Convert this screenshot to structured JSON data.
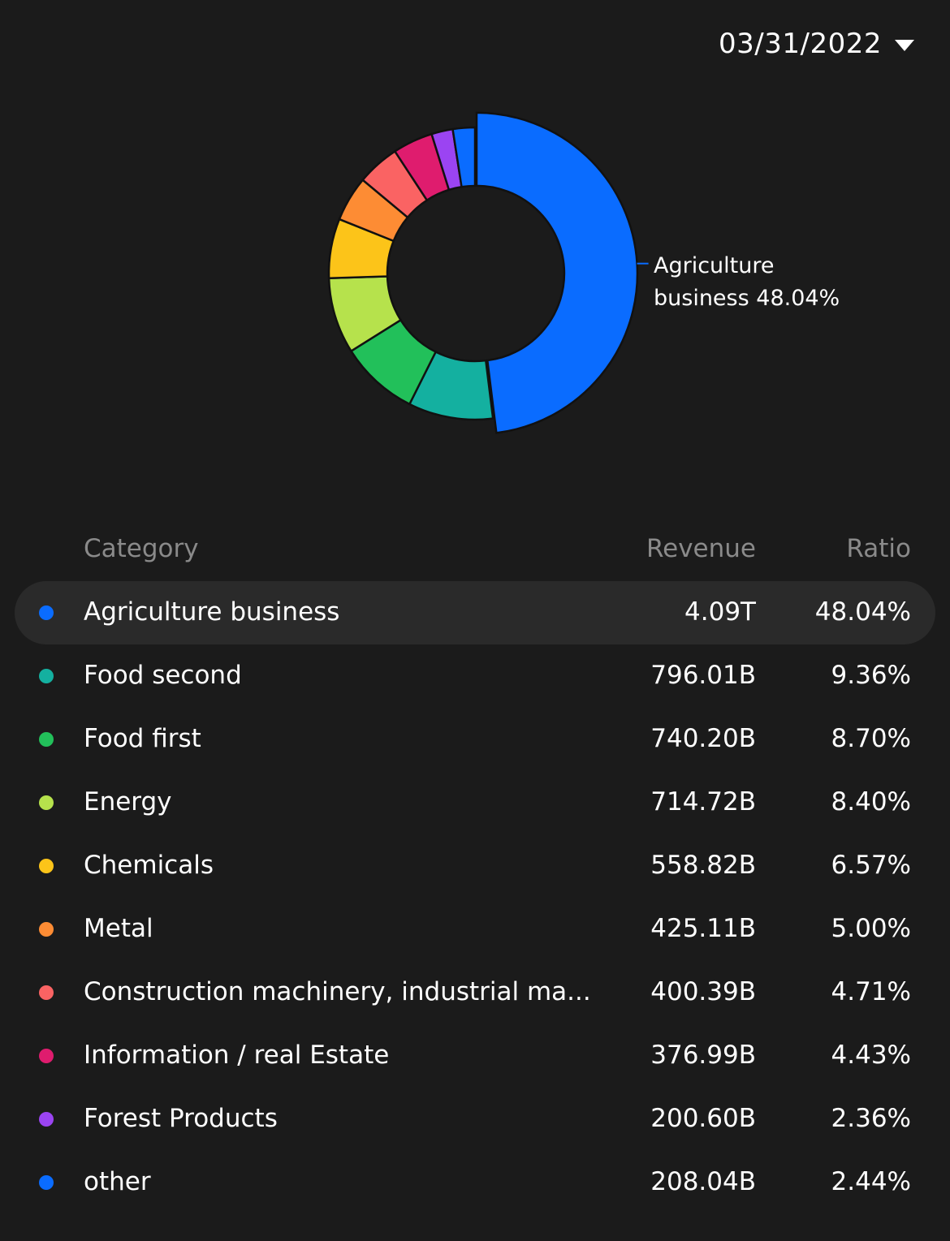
{
  "header": {
    "date": "03/31/2022"
  },
  "table": {
    "headers": {
      "category": "Category",
      "revenue": "Revenue",
      "ratio": "Ratio"
    }
  },
  "callout": {
    "line1": "Agriculture",
    "line2": "business 48.04%"
  },
  "chart_data": {
    "type": "pie",
    "donut": true,
    "selected_index": 0,
    "categories": [
      "Agriculture business",
      "Food second",
      "Food first",
      "Energy",
      "Chemicals",
      "Metal",
      "Construction machinery, industrial ma...",
      "Information / real Estate",
      "Forest Products",
      "other"
    ],
    "revenue_labels": [
      "4.09T",
      "796.01B",
      "740.20B",
      "714.72B",
      "558.82B",
      "425.11B",
      "400.39B",
      "376.99B",
      "200.60B",
      "208.04B"
    ],
    "ratio_labels": [
      "48.04%",
      "9.36%",
      "8.70%",
      "8.40%",
      "6.57%",
      "5.00%",
      "4.71%",
      "4.43%",
      "2.36%",
      "2.44%"
    ],
    "values": [
      48.04,
      9.36,
      8.7,
      8.4,
      6.57,
      5.0,
      4.71,
      4.43,
      2.36,
      2.44
    ],
    "colors": [
      "#0a6cff",
      "#14b0a0",
      "#22c05a",
      "#b6e24c",
      "#fcc419",
      "#fd8c34",
      "#fa6363",
      "#df1c6e",
      "#9b44f2",
      "#0a6cff"
    ]
  }
}
